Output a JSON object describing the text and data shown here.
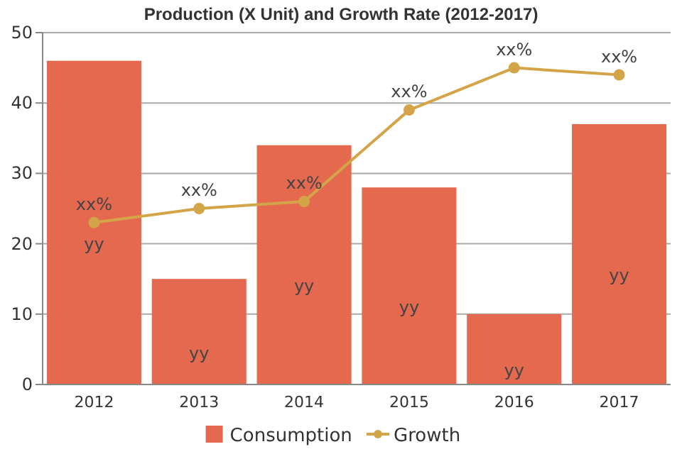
{
  "chart_data": {
    "type": "bar",
    "title": "Production (X Unit) and Growth Rate (2012-2017)",
    "categories": [
      "2012",
      "2013",
      "2014",
      "2015",
      "2016",
      "2017"
    ],
    "series": [
      {
        "name": "Consumption",
        "color": "#e5694f",
        "values": [
          46,
          15,
          34,
          28,
          10,
          37
        ],
        "value_labels": [
          "yy",
          "yy",
          "yy",
          "yy",
          "yy",
          "yy"
        ]
      },
      {
        "name": "Growth",
        "type": "line",
        "color": "#d4a548",
        "marker": "circle",
        "values": [
          23,
          25,
          26,
          39,
          45,
          44
        ],
        "value_labels": [
          "xx%",
          "xx%",
          "xx%",
          "xx%",
          "xx%",
          "xx%"
        ]
      }
    ],
    "ylim": [
      0,
      50
    ],
    "yticks": [
      0,
      10,
      20,
      30,
      40,
      50
    ],
    "grid": "y",
    "legend": "bottom"
  }
}
